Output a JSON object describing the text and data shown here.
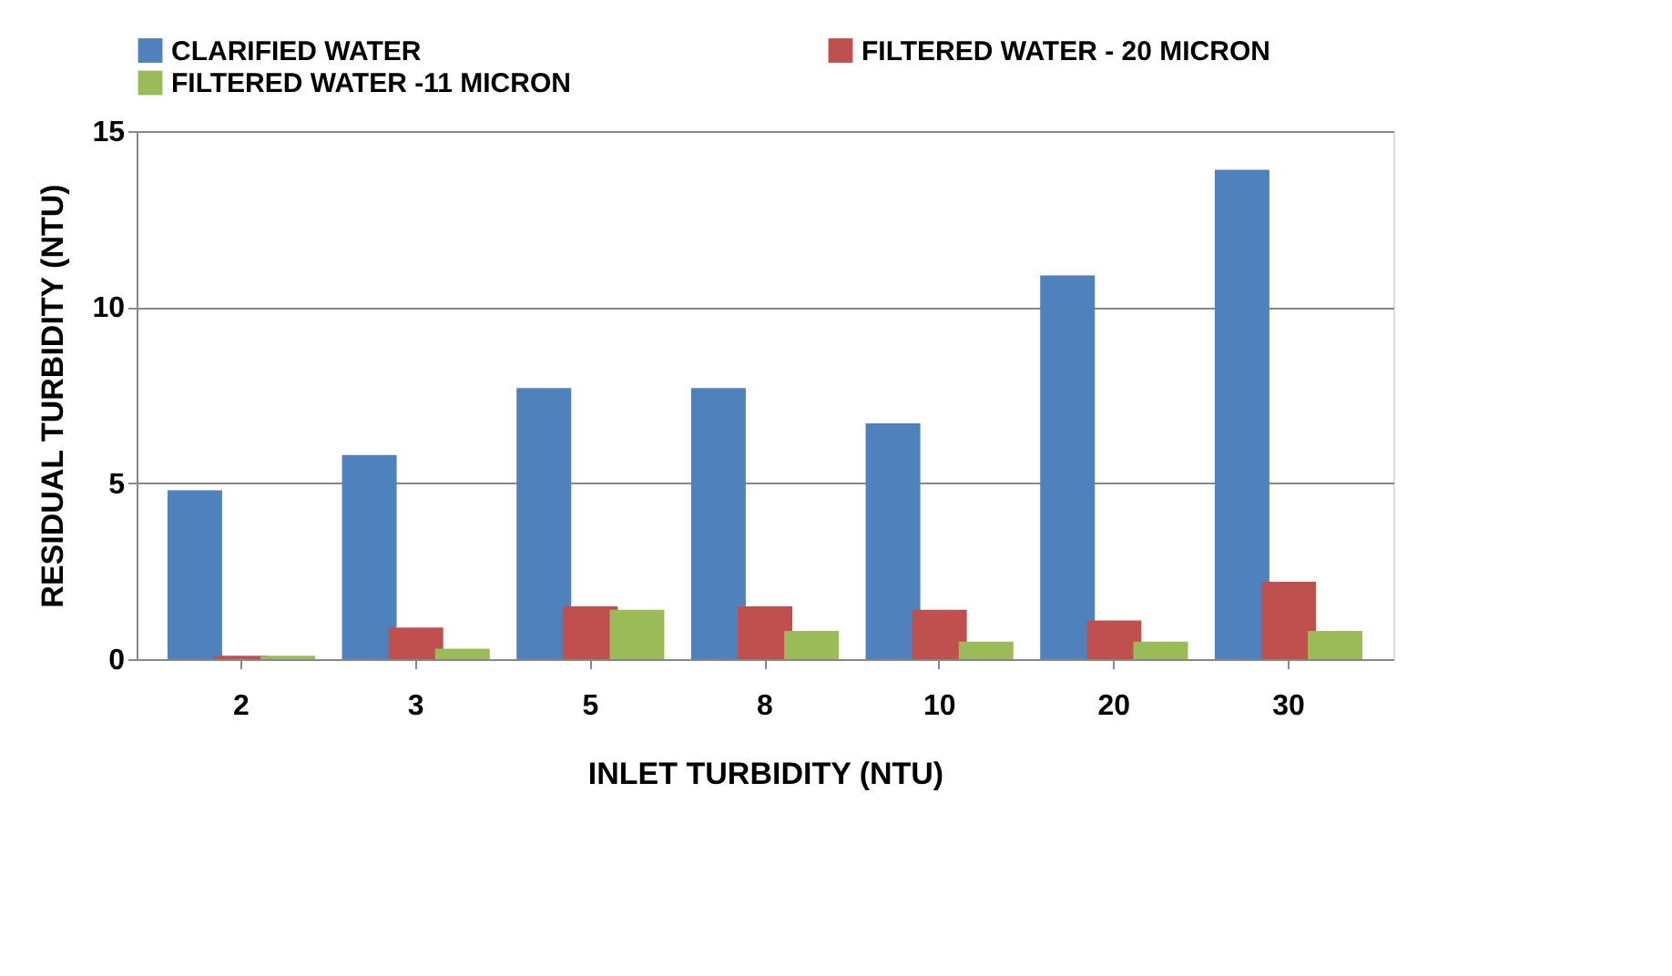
{
  "chart_data": {
    "type": "bar",
    "xlabel": "INLET  TURBIDITY (NTU)",
    "ylabel": "RESIDUAL  TURBIDITY (NTU)",
    "categories": [
      "2",
      "3",
      "5",
      "8",
      "10",
      "20",
      "30"
    ],
    "series": [
      {
        "name": "CLARIFIED WATER",
        "color": "#4f81bd",
        "values": [
          4.8,
          5.8,
          7.7,
          7.7,
          6.7,
          10.9,
          13.9
        ]
      },
      {
        "name": "FILTERED WATER - 20 MICRON",
        "color": "#c0504d",
        "values": [
          0.1,
          0.9,
          1.5,
          1.5,
          1.4,
          1.1,
          2.2
        ]
      },
      {
        "name": "FILTERED WATER -11 MICRON",
        "color": "#9bbb59",
        "values": [
          0.1,
          0.3,
          1.4,
          0.8,
          0.5,
          0.5,
          0.8
        ]
      }
    ],
    "ylim": [
      0,
      15
    ],
    "yticks": [
      0,
      5,
      10,
      15
    ],
    "grid": "y",
    "legend": "top"
  }
}
